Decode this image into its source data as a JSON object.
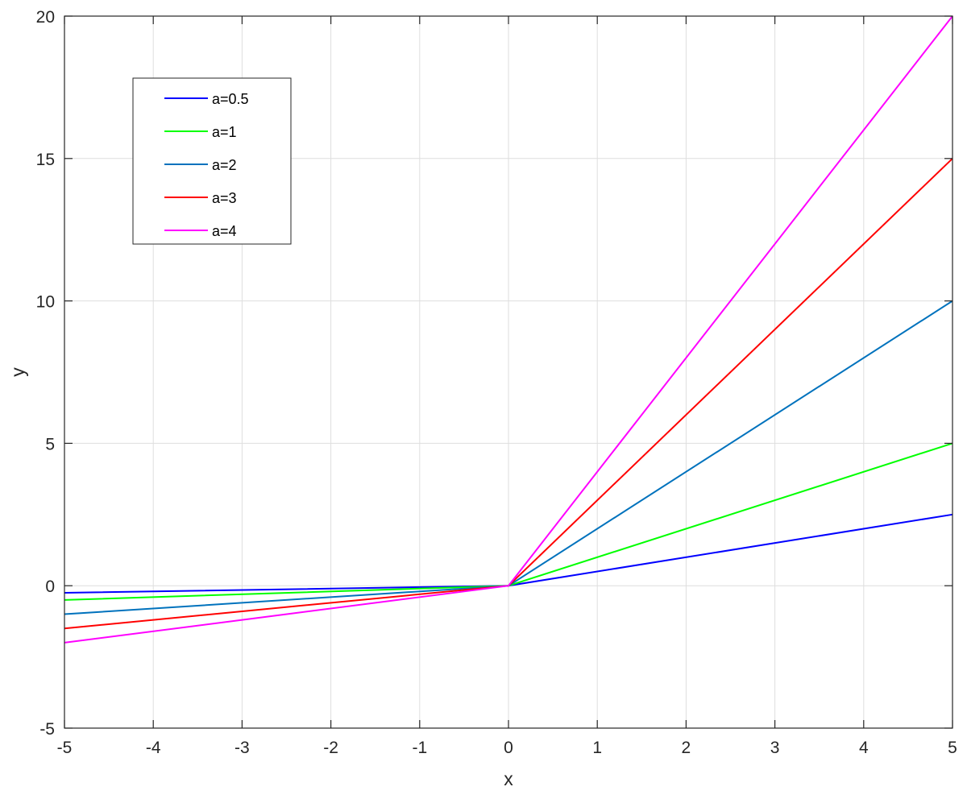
{
  "chart_data": {
    "type": "line",
    "xlabel": "x",
    "ylabel": "y",
    "xlim": [
      -5,
      5
    ],
    "ylim": [
      -5,
      20
    ],
    "x_ticks": [
      "-5",
      "-4",
      "-3",
      "-2",
      "-1",
      "0",
      "1",
      "2",
      "3",
      "4",
      "5"
    ],
    "y_ticks": [
      "-5",
      "0",
      "5",
      "10",
      "15",
      "20"
    ],
    "grid": true,
    "legend_position": "top-left",
    "series": [
      {
        "name": "a=0.5",
        "color": "#0000ff",
        "x": [
          -5,
          0,
          5
        ],
        "y": [
          -0.25,
          0,
          2.5
        ]
      },
      {
        "name": "a=1",
        "color": "#00ff00",
        "x": [
          -5,
          0,
          5
        ],
        "y": [
          -0.5,
          0,
          5
        ]
      },
      {
        "name": "a=2",
        "color": "#0072bd",
        "x": [
          -5,
          0,
          5
        ],
        "y": [
          -1,
          0,
          10
        ]
      },
      {
        "name": "a=3",
        "color": "#ff0000",
        "x": [
          -5,
          0,
          5
        ],
        "y": [
          -1.5,
          0,
          15
        ]
      },
      {
        "name": "a=4",
        "color": "#ff00ff",
        "x": [
          -5,
          0,
          5
        ],
        "y": [
          -2,
          0,
          20
        ]
      }
    ]
  }
}
